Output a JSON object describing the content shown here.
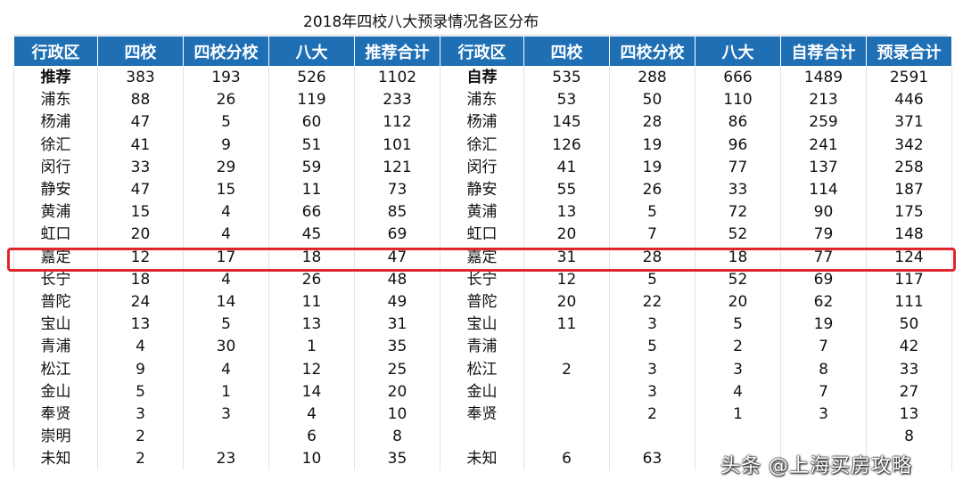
{
  "title": "2018年四校八大预录情况各区分布",
  "headers": [
    "行政区",
    "四校",
    "四校分校",
    "八大",
    "推荐合计",
    "行政区",
    "四校",
    "四校分校",
    "八大",
    "自荐合计",
    "预录合计"
  ],
  "rows": [
    [
      "推荐",
      "383",
      "193",
      "526",
      "1102",
      "自荐",
      "535",
      "288",
      "666",
      "1489",
      "2591"
    ],
    [
      "浦东",
      "88",
      "26",
      "119",
      "233",
      "浦东",
      "53",
      "50",
      "110",
      "213",
      "446"
    ],
    [
      "杨浦",
      "47",
      "5",
      "60",
      "112",
      "杨浦",
      "145",
      "28",
      "86",
      "259",
      "371"
    ],
    [
      "徐汇",
      "41",
      "9",
      "51",
      "101",
      "徐汇",
      "126",
      "19",
      "96",
      "241",
      "342"
    ],
    [
      "闵行",
      "33",
      "29",
      "59",
      "121",
      "闵行",
      "41",
      "19",
      "77",
      "137",
      "258"
    ],
    [
      "静安",
      "47",
      "15",
      "11",
      "73",
      "静安",
      "55",
      "26",
      "33",
      "114",
      "187"
    ],
    [
      "黄浦",
      "15",
      "4",
      "66",
      "85",
      "黄浦",
      "13",
      "5",
      "72",
      "90",
      "175"
    ],
    [
      "虹口",
      "20",
      "4",
      "45",
      "69",
      "虹口",
      "20",
      "7",
      "52",
      "79",
      "148"
    ],
    [
      "嘉定",
      "12",
      "17",
      "18",
      "47",
      "嘉定",
      "31",
      "28",
      "18",
      "77",
      "124"
    ],
    [
      "长宁",
      "18",
      "4",
      "26",
      "48",
      "长宁",
      "12",
      "5",
      "52",
      "69",
      "117"
    ],
    [
      "普陀",
      "24",
      "14",
      "11",
      "49",
      "普陀",
      "20",
      "22",
      "20",
      "62",
      "111"
    ],
    [
      "宝山",
      "13",
      "5",
      "13",
      "31",
      "宝山",
      "11",
      "3",
      "5",
      "19",
      "50"
    ],
    [
      "青浦",
      "4",
      "30",
      "1",
      "35",
      "青浦",
      "",
      "5",
      "2",
      "7",
      "42"
    ],
    [
      "松江",
      "9",
      "4",
      "12",
      "25",
      "松江",
      "2",
      "3",
      "3",
      "8",
      "33"
    ],
    [
      "金山",
      "5",
      "1",
      "14",
      "20",
      "金山",
      "",
      "3",
      "4",
      "7",
      "27"
    ],
    [
      "奉贤",
      "3",
      "3",
      "4",
      "10",
      "奉贤",
      "",
      "2",
      "1",
      "3",
      "13"
    ],
    [
      "崇明",
      "2",
      "",
      "6",
      "8",
      "",
      "",
      "",
      "",
      "",
      "8"
    ],
    [
      "未知",
      "2",
      "23",
      "10",
      "35",
      "未知",
      "6",
      "63",
      "",
      "",
      ""
    ]
  ],
  "highlight_color": "#e0262a",
  "header_color": "#1f6fb5",
  "watermark": "头条 @上海买房攻略"
}
